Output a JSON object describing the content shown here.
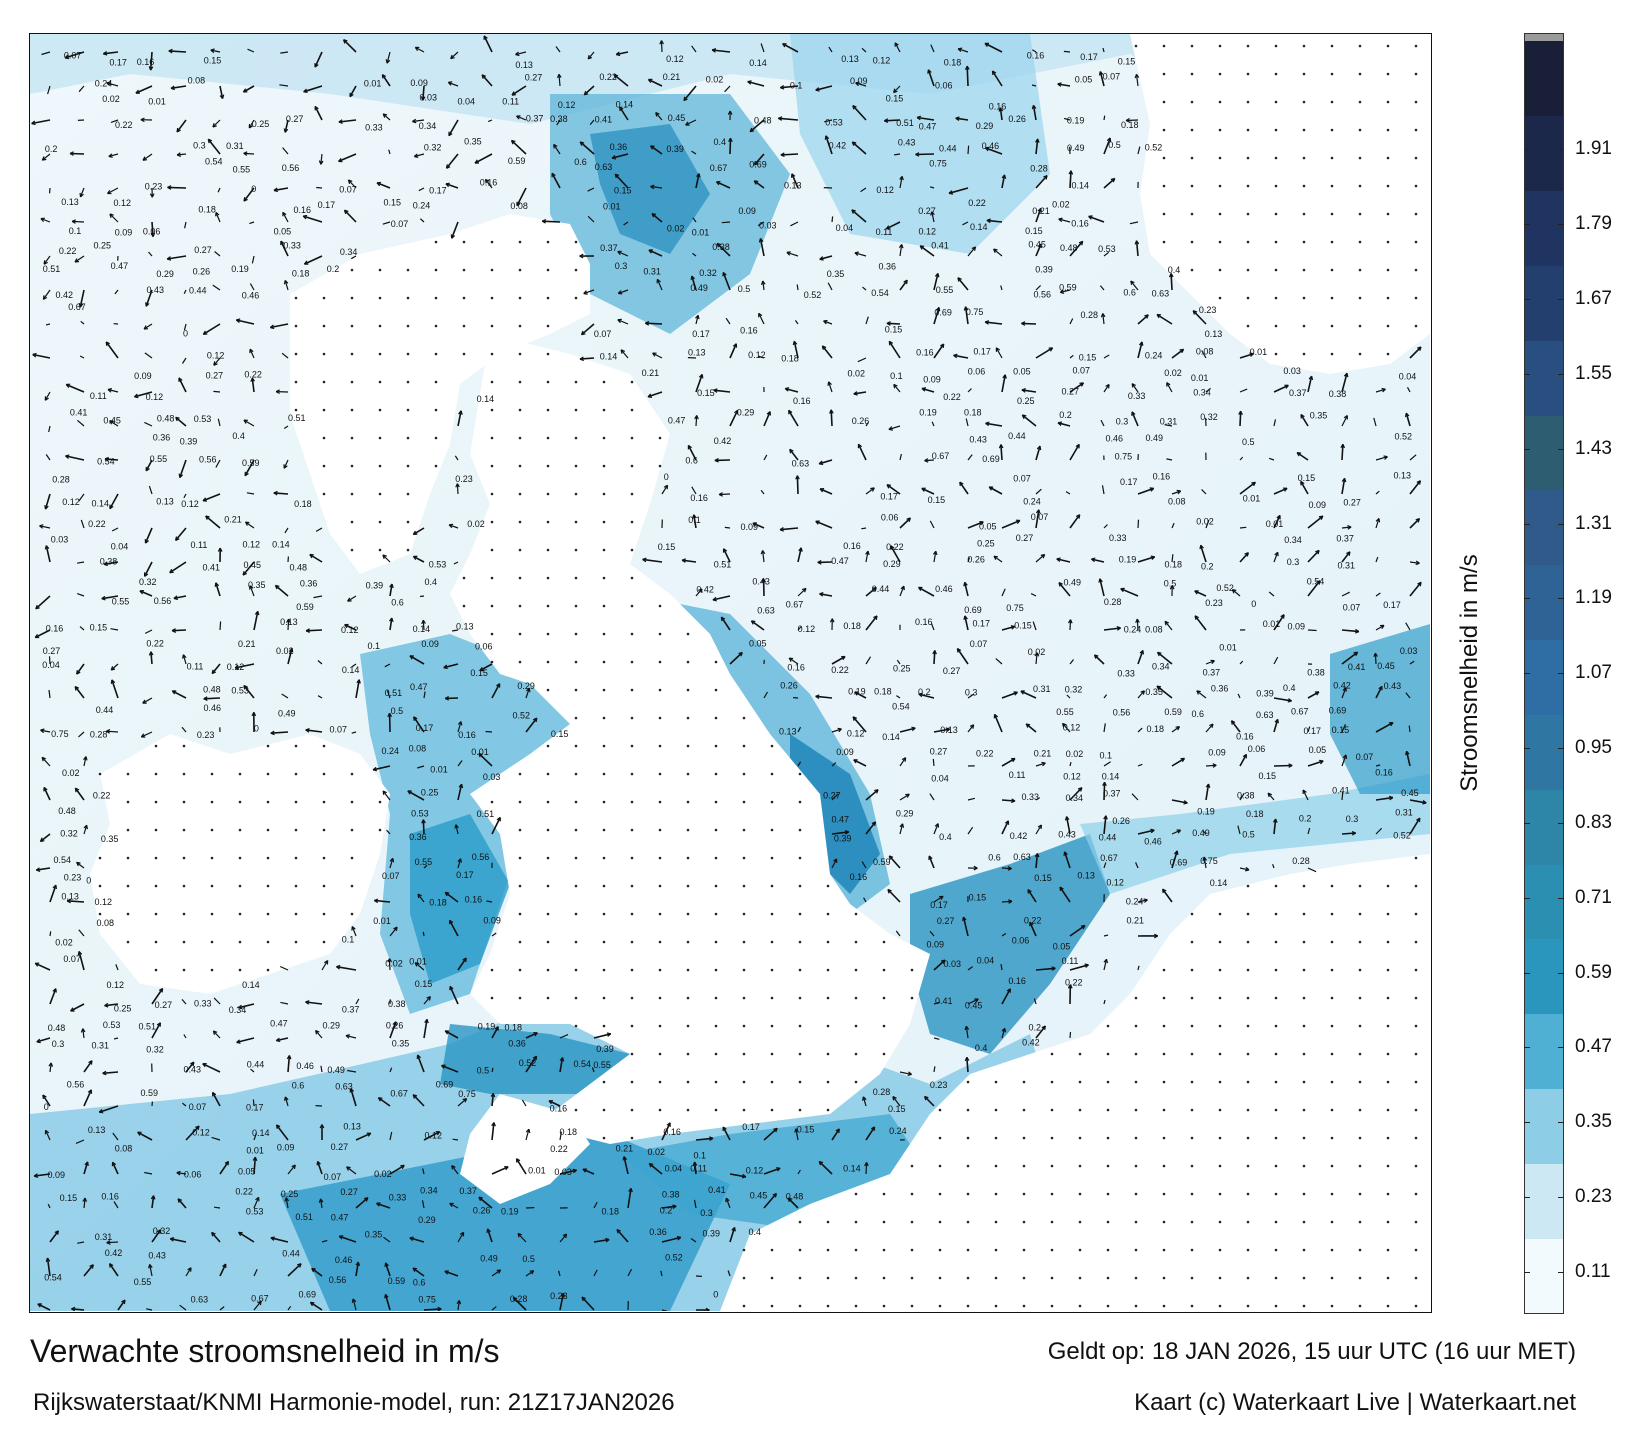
{
  "title": "Verwachte stroomsnelheid in m/s",
  "subtitle": "Rijkswaterstaat/KNMI Harmonie-model, run: 21Z17JAN2026",
  "valid_time": "Geldt op: 18 JAN 2026, 15 uur UTC (16 uur MET)",
  "credit": "Kaart (c) Waterkaart Live | Waterkaart.net",
  "colorbar": {
    "title": "Stroomsnelheid in m/s",
    "ticks": [
      "0.11",
      "0.23",
      "0.35",
      "0.47",
      "0.59",
      "0.71",
      "0.83",
      "0.95",
      "1.07",
      "1.19",
      "1.31",
      "1.43",
      "1.55",
      "1.67",
      "1.79",
      "1.91"
    ],
    "colors": [
      "#f3fafd",
      "#cce8f3",
      "#8ecde6",
      "#4fb0d3",
      "#2a95bd",
      "#2a8fb0",
      "#2d85a8",
      "#2f76a2",
      "#2f6da5",
      "#2f6295",
      "#2f5a8a",
      "#2c5d70",
      "#284f7f",
      "#233f6e",
      "#1f3460",
      "#1b2849",
      "#191f36"
    ],
    "top_color": "#9a9a9a"
  },
  "map": {
    "water_colors": [
      "#e8f4fa",
      "#b8def0",
      "#6ec0e0",
      "#2b9cc9",
      "#1a7fb3",
      "#1c5e99"
    ],
    "land_color": "#ffffff",
    "speed_labels": [
      {
        "t": "0.07"
      },
      {
        "t": "0.17"
      },
      {
        "t": "0.16"
      },
      {
        "t": "0.15"
      },
      {
        "t": "0.13"
      },
      {
        "t": "0.12"
      },
      {
        "t": "0.14"
      },
      {
        "t": "0.13"
      },
      {
        "t": "0.12"
      },
      {
        "t": "0.18"
      },
      {
        "t": "0.16"
      },
      {
        "t": "0.17"
      },
      {
        "t": "0.15"
      },
      {
        "t": "0.24"
      },
      {
        "t": "0.08"
      },
      {
        "t": "0.01"
      },
      {
        "t": "0.09"
      },
      {
        "t": "0.27"
      },
      {
        "t": "0.22"
      },
      {
        "t": "0.21"
      },
      {
        "t": "0.02"
      },
      {
        "t": "0.1"
      },
      {
        "t": "0.09"
      },
      {
        "t": "0.06"
      },
      {
        "t": "0.05"
      },
      {
        "t": "0.07"
      },
      {
        "t": "0.02"
      },
      {
        "t": "0.01"
      },
      {
        "t": "0.03"
      },
      {
        "t": "0.04"
      },
      {
        "t": "0.11"
      },
      {
        "t": "0.12"
      },
      {
        "t": "0.14"
      },
      {
        "t": "0.15"
      },
      {
        "t": "0.16"
      },
      {
        "t": "0.22"
      },
      {
        "t": "0.25"
      },
      {
        "t": "0.27"
      },
      {
        "t": "0.33"
      },
      {
        "t": "0.34"
      },
      {
        "t": "0.37"
      },
      {
        "t": "0.38"
      },
      {
        "t": "0.41"
      },
      {
        "t": "0.45"
      },
      {
        "t": "0.48"
      },
      {
        "t": "0.53"
      },
      {
        "t": "0.51"
      },
      {
        "t": "0.47"
      },
      {
        "t": "0.29"
      },
      {
        "t": "0.26"
      },
      {
        "t": "0.19"
      },
      {
        "t": "0.18"
      },
      {
        "t": "0.2"
      },
      {
        "t": "0.3"
      },
      {
        "t": "0.31"
      },
      {
        "t": "0.32"
      },
      {
        "t": "0.35"
      },
      {
        "t": "0.36"
      },
      {
        "t": "0.39"
      },
      {
        "t": "0.4"
      },
      {
        "t": "0.42"
      },
      {
        "t": "0.43"
      },
      {
        "t": "0.44"
      },
      {
        "t": "0.46"
      },
      {
        "t": "0.49"
      },
      {
        "t": "0.5"
      },
      {
        "t": "0.52"
      },
      {
        "t": "0.54"
      },
      {
        "t": "0.55"
      },
      {
        "t": "0.56"
      },
      {
        "t": "0.59"
      },
      {
        "t": "0.6"
      },
      {
        "t": "0.63"
      },
      {
        "t": "0.67"
      },
      {
        "t": "0.69"
      },
      {
        "t": "0.75"
      },
      {
        "t": "0.28"
      },
      {
        "t": "0.23"
      },
      {
        "t": "0"
      }
    ]
  }
}
